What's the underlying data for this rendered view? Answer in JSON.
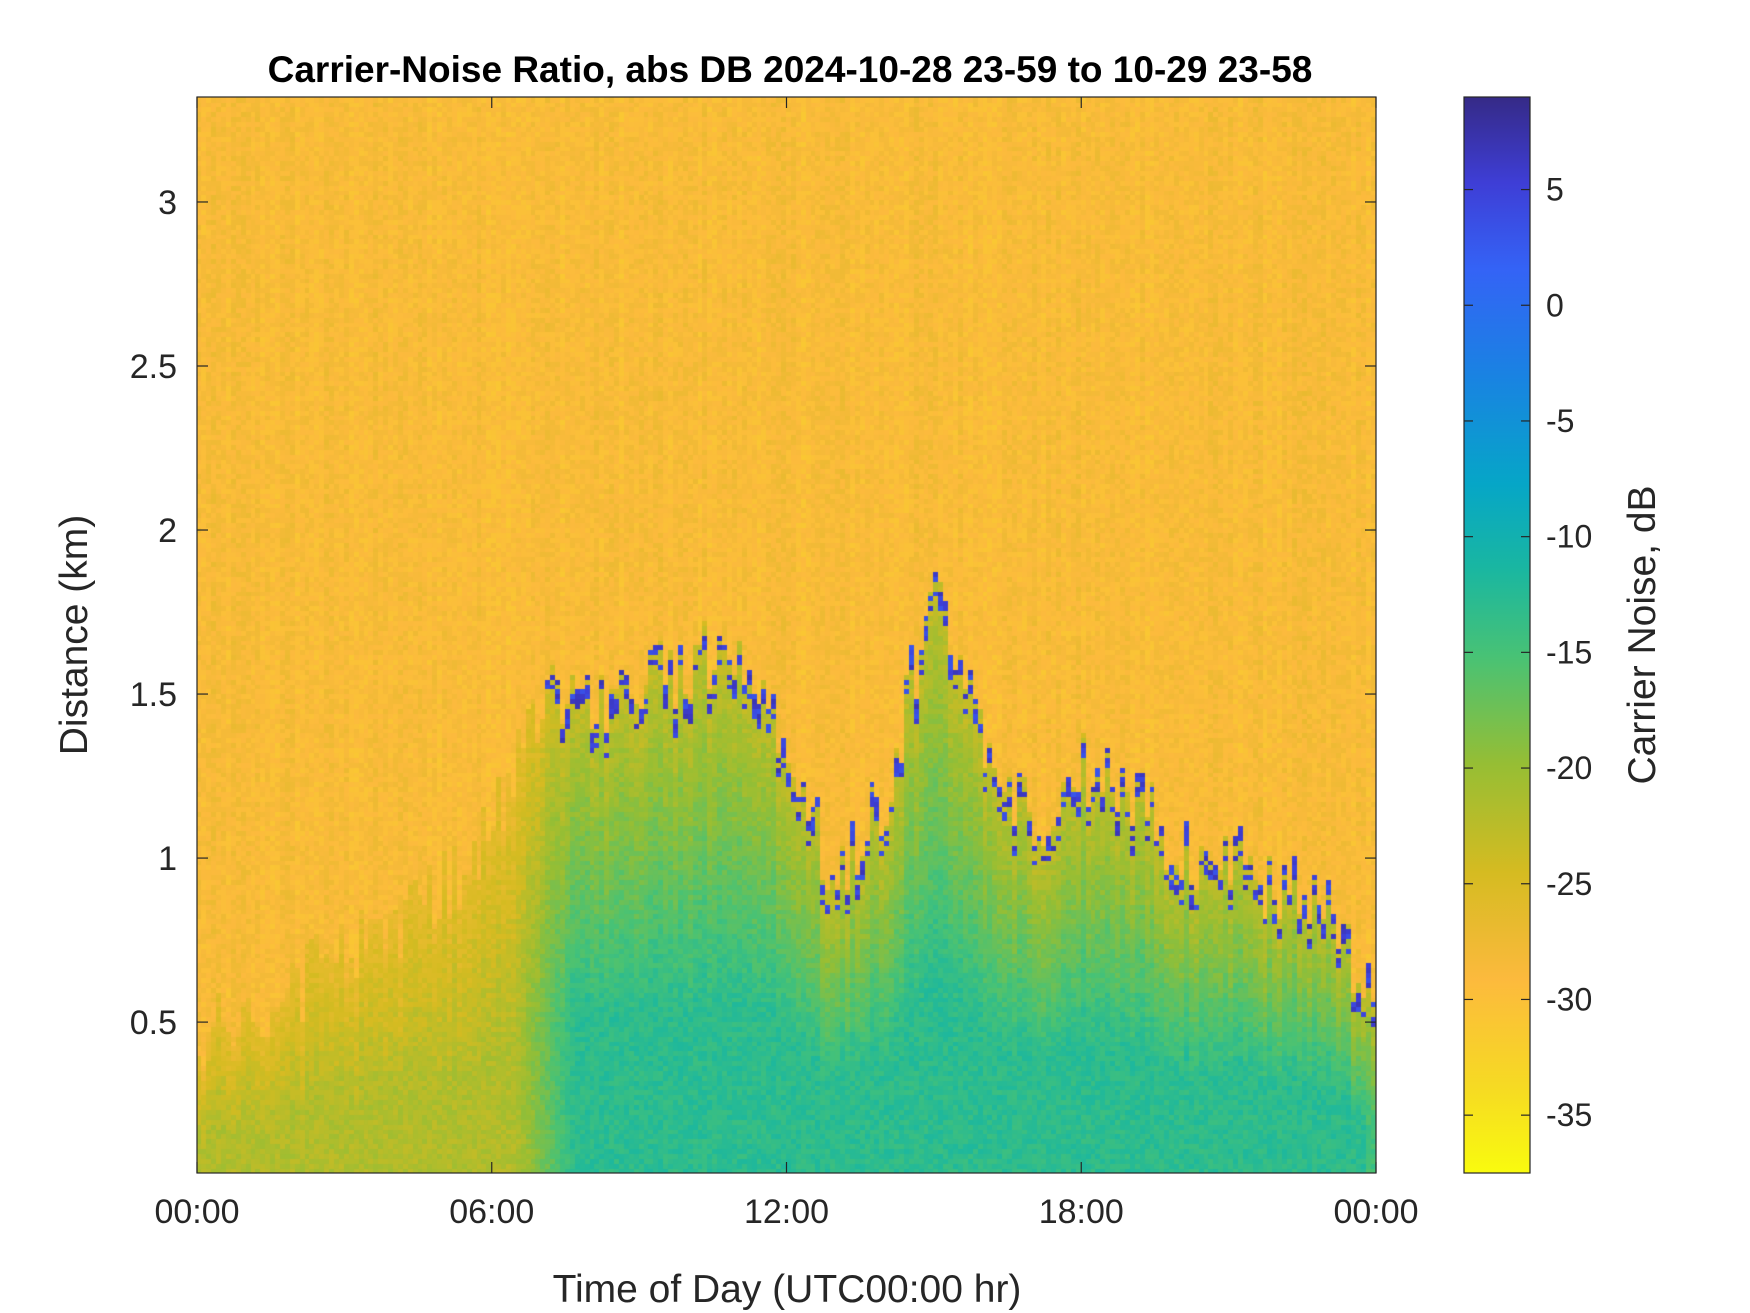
{
  "chart_data": {
    "type": "heatmap",
    "title": "Carrier-Noise Ratio, abs DB 2024-10-28 23-59 to 10-29 23-58",
    "xlabel": "Time of Day (UTC00:00 hr)",
    "ylabel": "Distance (km)",
    "x_ticks": [
      {
        "value": 0,
        "label": "00:00"
      },
      {
        "value": 6,
        "label": "06:00"
      },
      {
        "value": 12,
        "label": "12:00"
      },
      {
        "value": 18,
        "label": "18:00"
      },
      {
        "value": 24,
        "label": "00:00"
      }
    ],
    "xlim": [
      0,
      24
    ],
    "y_ticks": [
      {
        "value": 0.5,
        "label": "0.5"
      },
      {
        "value": 1.0,
        "label": "1"
      },
      {
        "value": 1.5,
        "label": "1.5"
      },
      {
        "value": 2.0,
        "label": "2"
      },
      {
        "value": 2.5,
        "label": "2.5"
      },
      {
        "value": 3.0,
        "label": "3"
      }
    ],
    "ylim": [
      0.04,
      3.32
    ],
    "grid": false,
    "colorbar": {
      "label": "Carrier Noise, dB",
      "range": [
        -37.5,
        9
      ],
      "ticks": [
        {
          "value": 5,
          "label": "5"
        },
        {
          "value": 0,
          "label": "0"
        },
        {
          "value": -5,
          "label": "-5"
        },
        {
          "value": -10,
          "label": "-10"
        },
        {
          "value": -15,
          "label": "-15"
        },
        {
          "value": -20,
          "label": "-20"
        },
        {
          "value": -25,
          "label": "-25"
        },
        {
          "value": -30,
          "label": "-30"
        },
        {
          "value": -35,
          "label": "-35"
        }
      ],
      "colormap": "parula"
    },
    "background_level_db": -29,
    "boundary_layer_top_km": [
      [
        0,
        0.45
      ],
      [
        3,
        0.7
      ],
      [
        5,
        0.9
      ],
      [
        6,
        1.1
      ],
      [
        7,
        1.5
      ],
      [
        8,
        1.45
      ],
      [
        9,
        1.5
      ],
      [
        10,
        1.6
      ],
      [
        11,
        1.6
      ],
      [
        12,
        1.4
      ],
      [
        13,
        0.9
      ],
      [
        14,
        1.2
      ],
      [
        15,
        1.8
      ],
      [
        16,
        1.4
      ],
      [
        17,
        1.1
      ],
      [
        18,
        1.3
      ],
      [
        19,
        1.2
      ],
      [
        20,
        1.0
      ],
      [
        21,
        1.0
      ],
      [
        22,
        0.9
      ],
      [
        23,
        0.9
      ],
      [
        24,
        0.5
      ]
    ]
  }
}
